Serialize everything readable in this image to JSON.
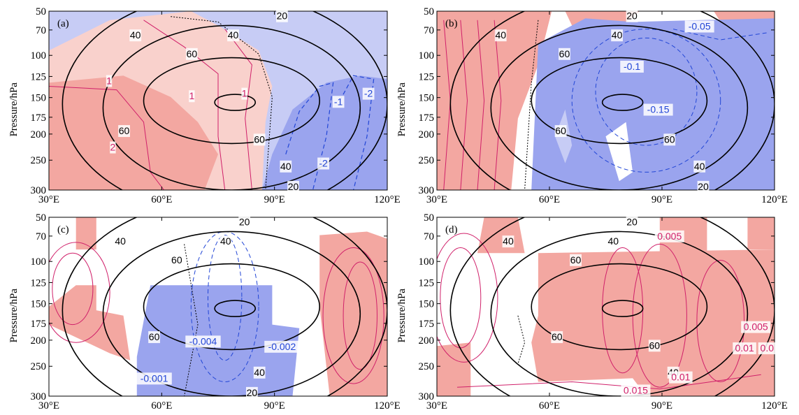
{
  "chart_data": [
    {
      "type": "contour",
      "panel_label": "(a)",
      "ylabel": "Pressure/hPa",
      "xlabel": "",
      "x_ticks": [
        "30°E",
        "60°E",
        "90°E",
        "120°E"
      ],
      "y_ticks": [
        "50",
        "70",
        "100",
        "125",
        "150",
        "175",
        "200",
        "250",
        "300"
      ],
      "xlim": [
        30,
        120
      ],
      "ylim": [
        300,
        50
      ],
      "shading_colors": {
        "positive": "#f3a7a1",
        "negative": "#9aa4ee"
      },
      "black_contour_values": [
        20,
        40,
        60
      ],
      "annotations": [
        {
          "text": "20",
          "x": 92,
          "y": 55,
          "color": "#000000"
        },
        {
          "text": "40",
          "x": 53,
          "y": 76,
          "color": "#000000"
        },
        {
          "text": "40",
          "x": 79,
          "y": 76,
          "color": "#000000"
        },
        {
          "text": "60",
          "x": 68,
          "y": 98,
          "color": "#000000"
        },
        {
          "text": "60",
          "x": 50,
          "y": 195,
          "color": "#000000"
        },
        {
          "text": "60",
          "x": 86,
          "y": 210,
          "color": "#000000"
        },
        {
          "text": "40",
          "x": 93,
          "y": 260,
          "color": "#000000"
        },
        {
          "text": "20",
          "x": 95,
          "y": 294,
          "color": "#000000"
        },
        {
          "text": "1",
          "x": 46,
          "y": 130,
          "color": "#d0206a"
        },
        {
          "text": "1",
          "x": 68,
          "y": 148,
          "color": "#d0206a"
        },
        {
          "text": "1",
          "x": 82,
          "y": 145,
          "color": "#d0206a"
        },
        {
          "text": "2",
          "x": 47,
          "y": 225,
          "color": "#d0206a"
        },
        {
          "text": "-1",
          "x": 107,
          "y": 155,
          "color": "#2246d6"
        },
        {
          "text": "-2",
          "x": 115,
          "y": 145,
          "color": "#2246d6"
        },
        {
          "text": "-2",
          "x": 103,
          "y": 255,
          "color": "#2246d6"
        }
      ]
    },
    {
      "type": "contour",
      "panel_label": "(b)",
      "ylabel": "Pressure/hPa",
      "xlabel": "",
      "x_ticks": [
        "30°E",
        "60°E",
        "90°E",
        "120°E"
      ],
      "y_ticks": [
        "50",
        "70",
        "100",
        "125",
        "150",
        "175",
        "200",
        "250",
        "300"
      ],
      "xlim": [
        30,
        120
      ],
      "ylim": [
        300,
        50
      ],
      "shading_colors": {
        "positive": "#f3a7a1",
        "negative": "#9aa4ee"
      },
      "black_contour_values": [
        20,
        40,
        60
      ],
      "annotations": [
        {
          "text": "20",
          "x": 82,
          "y": 55,
          "color": "#000000"
        },
        {
          "text": "40",
          "x": 47,
          "y": 76,
          "color": "#000000"
        },
        {
          "text": "40",
          "x": 78,
          "y": 76,
          "color": "#000000"
        },
        {
          "text": "60",
          "x": 64,
          "y": 98,
          "color": "#000000"
        },
        {
          "text": "60",
          "x": 63,
          "y": 195,
          "color": "#000000"
        },
        {
          "text": "60",
          "x": 92,
          "y": 210,
          "color": "#000000"
        },
        {
          "text": "40",
          "x": 100,
          "y": 260,
          "color": "#000000"
        },
        {
          "text": "20",
          "x": 101,
          "y": 294,
          "color": "#000000"
        },
        {
          "text": "-0.05",
          "x": 100,
          "y": 66,
          "color": "#2246d6"
        },
        {
          "text": "-0.1",
          "x": 82,
          "y": 113,
          "color": "#2246d6"
        },
        {
          "text": "-0.15",
          "x": 89,
          "y": 165,
          "color": "#2246d6"
        }
      ]
    },
    {
      "type": "contour",
      "panel_label": "(c)",
      "ylabel": "Pressure/hPa",
      "xlabel": "",
      "x_ticks": [
        "30°E",
        "60°E",
        "90°E",
        "120°E"
      ],
      "y_ticks": [
        "50",
        "70",
        "100",
        "125",
        "150",
        "175",
        "200",
        "250",
        "300"
      ],
      "xlim": [
        30,
        120
      ],
      "ylim": [
        300,
        50
      ],
      "shading_colors": {
        "positive": "#f3a7a1",
        "negative": "#9aa4ee"
      },
      "black_contour_values": [
        20,
        40,
        60
      ],
      "annotations": [
        {
          "text": "20",
          "x": 82,
          "y": 55,
          "color": "#000000"
        },
        {
          "text": "40",
          "x": 49,
          "y": 76,
          "color": "#000000"
        },
        {
          "text": "40",
          "x": 77,
          "y": 76,
          "color": "#000000"
        },
        {
          "text": "60",
          "x": 64,
          "y": 98,
          "color": "#000000"
        },
        {
          "text": "60",
          "x": 58,
          "y": 195,
          "color": "#000000"
        },
        {
          "text": "40",
          "x": 86,
          "y": 260,
          "color": "#000000"
        },
        {
          "text": "20",
          "x": 84,
          "y": 294,
          "color": "#000000"
        },
        {
          "text": "-0.004",
          "x": 71,
          "y": 202,
          "color": "#2246d6"
        },
        {
          "text": "-0.002",
          "x": 92,
          "y": 212,
          "color": "#2246d6"
        },
        {
          "text": "-0.001",
          "x": 58,
          "y": 270,
          "color": "#2246d6"
        }
      ]
    },
    {
      "type": "contour",
      "panel_label": "(d)",
      "ylabel": "Pressure/hPa",
      "xlabel": "",
      "x_ticks": [
        "30°E",
        "60°E",
        "90°E",
        "120°E"
      ],
      "y_ticks": [
        "50",
        "70",
        "100",
        "125",
        "150",
        "175",
        "200",
        "250",
        "300"
      ],
      "xlim": [
        30,
        120
      ],
      "ylim": [
        300,
        50
      ],
      "shading_colors": {
        "positive": "#f3a7a1",
        "negative": "#9aa4ee"
      },
      "black_contour_values": [
        20,
        40,
        60
      ],
      "annotations": [
        {
          "text": "20",
          "x": 82,
          "y": 55,
          "color": "#000000"
        },
        {
          "text": "40",
          "x": 49,
          "y": 76,
          "color": "#000000"
        },
        {
          "text": "40",
          "x": 77,
          "y": 76,
          "color": "#000000"
        },
        {
          "text": "60",
          "x": 67,
          "y": 98,
          "color": "#000000"
        },
        {
          "text": "60",
          "x": 62,
          "y": 195,
          "color": "#000000"
        },
        {
          "text": "60",
          "x": 88,
          "y": 210,
          "color": "#000000"
        },
        {
          "text": "40",
          "x": 93,
          "y": 260,
          "color": "#000000"
        },
        {
          "text": "0.005",
          "x": 92,
          "y": 70,
          "color": "#d0206a"
        },
        {
          "text": "0.005",
          "x": 115,
          "y": 180,
          "color": "#d0206a"
        },
        {
          "text": "0.01",
          "x": 112,
          "y": 215,
          "color": "#d0206a"
        },
        {
          "text": "0.0",
          "x": 118,
          "y": 215,
          "color": "#d0206a"
        },
        {
          "text": "0.01",
          "x": 95,
          "y": 268,
          "color": "#d0206a"
        },
        {
          "text": "0.015",
          "x": 83,
          "y": 290,
          "color": "#d0206a"
        }
      ]
    }
  ]
}
